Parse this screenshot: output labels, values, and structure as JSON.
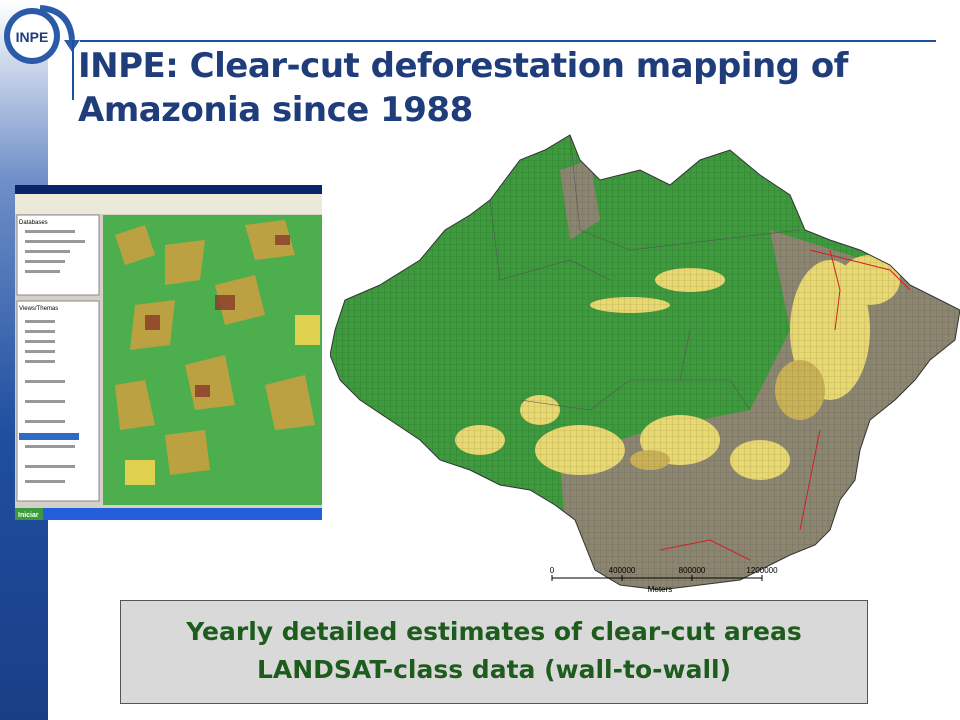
{
  "header": {
    "logo": "INPE",
    "title_lines": [
      "INPE: Clear-cut deforestation mapping of",
      "Amazonia since 1988"
    ]
  },
  "screenshot": {
    "panels": [
      "Databases",
      "Views/Themas"
    ],
    "taskbar_start": "Iniciar"
  },
  "map": {
    "scale": {
      "ticks": [
        "0",
        "400000",
        "800000",
        "1200000"
      ],
      "unit": "Meters"
    }
  },
  "caption": {
    "lines": [
      "Yearly detailed estimates of clear-cut areas",
      "LANDSAT-class  data (wall-to-wall)"
    ]
  }
}
